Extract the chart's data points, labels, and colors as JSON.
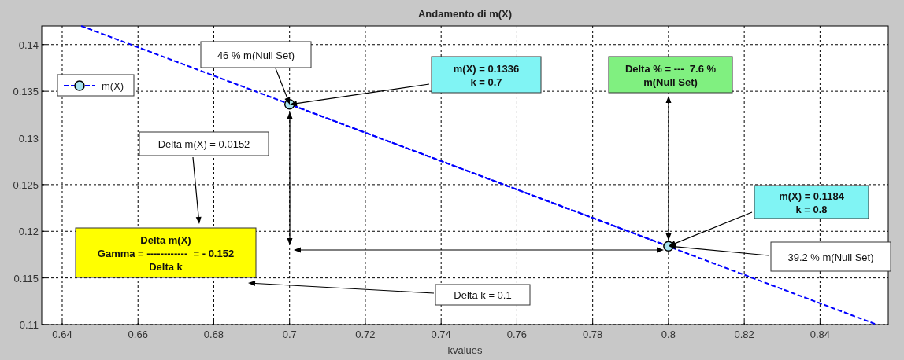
{
  "chart_data": {
    "type": "line",
    "title": "Andamento di m(X)",
    "xlabel": "kvalues",
    "xlim": [
      0.6346,
      0.858
    ],
    "ylim": [
      0.11,
      0.142
    ],
    "xticks": [
      0.64,
      0.66,
      0.68,
      0.7,
      0.72,
      0.74,
      0.76,
      0.78,
      0.8,
      0.82,
      0.84
    ],
    "yticks": [
      0.11,
      0.115,
      0.12,
      0.125,
      0.13,
      0.135,
      0.14
    ],
    "grid": true,
    "legend": "top left",
    "line_style": "dashed",
    "marker": "circle",
    "series": [
      {
        "name": "m(X)",
        "color": "#0000ff",
        "x": [
          0.7,
          0.8
        ],
        "values": [
          0.1336,
          0.1184
        ]
      },
      {
        "type": "line",
        "marker": "none",
        "color": "#0000ff",
        "x": [
          0.645,
          0.855
        ],
        "values": [
          0.142,
          0.11
        ]
      }
    ],
    "annotations": [
      "46 % m(Null Set)",
      "m(X) = 0.1336\nk = 0.7",
      "Delta % = ---  7.6 %\nm(Null Set)",
      "m(X) = 0.1184\nk = 0.8",
      "39.2 % m(Null Set)",
      "Delta m(X) = 0.0152",
      "Delta m(X)\nGamma = ------------  = - 0.152\nDelta k",
      "Delta k = 0.1"
    ]
  }
}
